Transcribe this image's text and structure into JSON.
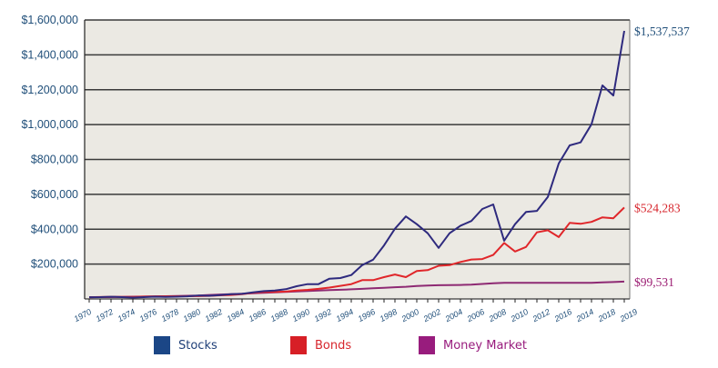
{
  "chart_data": {
    "type": "line",
    "title": "",
    "xlabel": "",
    "ylabel": "",
    "ylim": [
      0,
      1600000
    ],
    "yticks": [
      0,
      200000,
      400000,
      600000,
      800000,
      1000000,
      1200000,
      1400000,
      1600000
    ],
    "ytick_labels": [
      "",
      "$200,000",
      "$400,000",
      "$600,000",
      "$800,000",
      "$1,000,000",
      "$1,200,000",
      "$1,400,000",
      "$1,600,000"
    ],
    "xtick_labels": [
      "1970",
      "1972",
      "1974",
      "1976",
      "1978",
      "1980",
      "1982",
      "1984",
      "1986",
      "1988",
      "1990",
      "1992",
      "1994",
      "1996",
      "1998",
      "2000",
      "2002",
      "2004",
      "2006",
      "2008",
      "2010",
      "2012",
      "2016",
      "2014",
      "2018",
      "2019"
    ],
    "grid": "horizontal",
    "legend_position": "bottom",
    "x": [
      1970,
      1971,
      1972,
      1973,
      1974,
      1975,
      1976,
      1977,
      1978,
      1979,
      1980,
      1981,
      1982,
      1983,
      1984,
      1985,
      1986,
      1987,
      1988,
      1989,
      1990,
      1991,
      1992,
      1993,
      1994,
      1995,
      1996,
      1997,
      1998,
      1999,
      2000,
      2001,
      2002,
      2003,
      2004,
      2005,
      2006,
      2007,
      2008,
      2009,
      2010,
      2011,
      2012,
      2013,
      2014,
      2015,
      2016,
      2017,
      2018,
      2019
    ],
    "series": [
      {
        "name": "Stocks",
        "color": "#2e2a7e",
        "legend_color": "#1b4686",
        "end_label": "$1,537,537",
        "end_label_color": "#1f4e79",
        "values": [
          10000,
          10500,
          12500,
          10500,
          8000,
          10500,
          13000,
          12000,
          12800,
          15000,
          19500,
          18500,
          22500,
          27500,
          29000,
          38000,
          45000,
          48000,
          56000,
          73000,
          85000,
          85000,
          116000,
          120000,
          137000,
          194000,
          225000,
          307000,
          403000,
          473000,
          429000,
          377000,
          293000,
          377000,
          420000,
          447000,
          516000,
          542000,
          334000,
          429000,
          499000,
          505000,
          585000,
          777000,
          881000,
          898000,
          1002000,
          1225000,
          1167000,
          1537537
        ]
      },
      {
        "name": "Bonds",
        "color": "#e0262a",
        "legend_color": "#d71f26",
        "end_label": "$524,283",
        "end_label_color": "#d7262d",
        "values": [
          10000,
          11000,
          11500,
          11800,
          12000,
          13500,
          15000,
          15500,
          15600,
          15800,
          16000,
          17500,
          21000,
          23000,
          27000,
          35000,
          40000,
          40500,
          42000,
          48000,
          52000,
          58000,
          65000,
          75000,
          85000,
          108000,
          108000,
          125000,
          140000,
          125000,
          160000,
          165000,
          190000,
          194000,
          212000,
          226000,
          229000,
          252000,
          321000,
          272000,
          298000,
          382000,
          394000,
          355000,
          436000,
          431000,
          442000,
          468000,
          463000,
          524283
        ]
      },
      {
        "name": "Money Market",
        "color": "#8e2a73",
        "legend_color": "#981c7d",
        "end_label": "$99,531",
        "end_label_color": "#9b1c72",
        "values": [
          10000,
          10500,
          11000,
          11800,
          12800,
          13800,
          14600,
          15500,
          16500,
          18000,
          20000,
          23000,
          25500,
          27500,
          30000,
          32500,
          35000,
          37500,
          40000,
          43000,
          46000,
          48500,
          50500,
          52500,
          55000,
          58000,
          61000,
          64000,
          67000,
          70000,
          74000,
          77000,
          78500,
          79000,
          80000,
          82000,
          86000,
          90000,
          92000,
          92200,
          92300,
          92400,
          92500,
          92600,
          92700,
          92800,
          93000,
          95000,
          97000,
          99531
        ]
      }
    ]
  }
}
